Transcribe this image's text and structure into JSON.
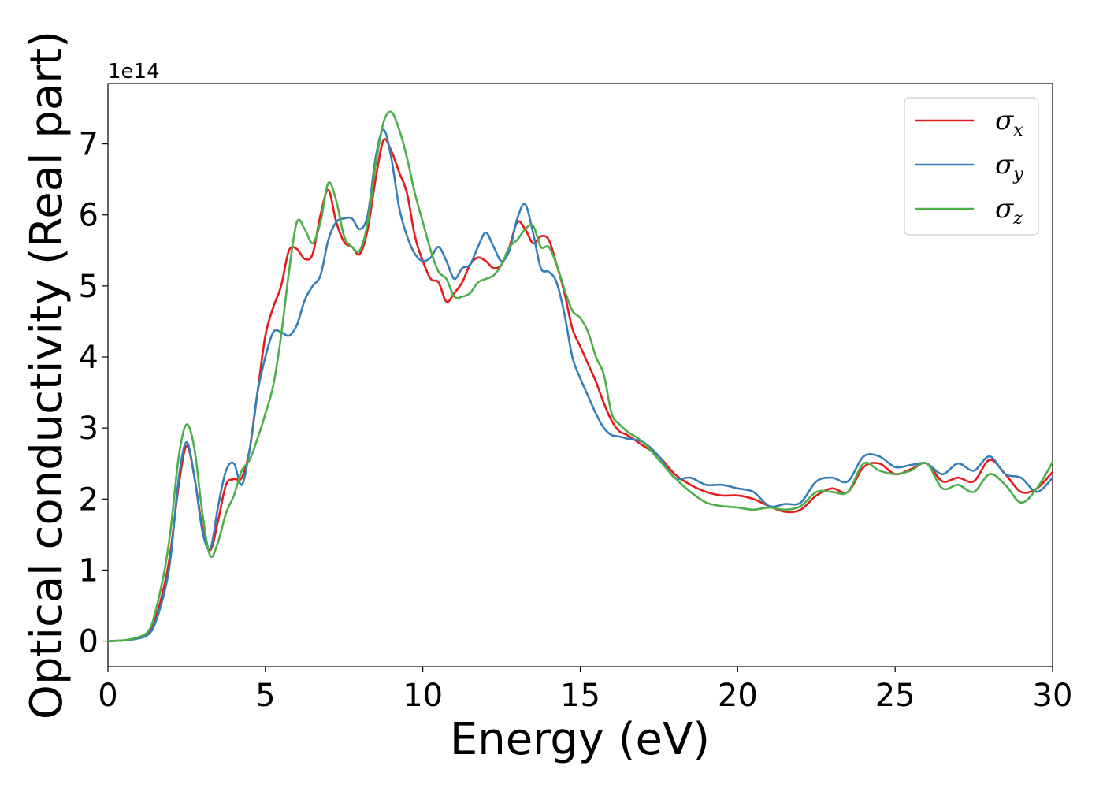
{
  "chart_data": {
    "type": "line",
    "xlabel": "Energy (eV)",
    "ylabel": "Optical conductivity (Real part)",
    "y_offset_label": "1e14",
    "xlim": [
      0,
      30
    ],
    "ylim": [
      -0.36,
      7.85
    ],
    "x_ticks": [
      0,
      5,
      10,
      15,
      20,
      25,
      30
    ],
    "y_ticks": [
      0,
      1,
      2,
      3,
      4,
      5,
      6,
      7
    ],
    "grid": false,
    "legend_position": "top-right",
    "series": [
      {
        "name": "σx",
        "label_main": "σ",
        "label_sub": "x",
        "color": "#e41a1c",
        "x": [
          0,
          0.5,
          1.0,
          1.3,
          1.5,
          1.8,
          2.0,
          2.25,
          2.5,
          2.75,
          3.0,
          3.25,
          3.5,
          3.75,
          4.0,
          4.25,
          4.5,
          4.75,
          5.0,
          5.25,
          5.5,
          5.75,
          6.0,
          6.25,
          6.5,
          6.75,
          7.0,
          7.25,
          7.5,
          7.75,
          8.0,
          8.25,
          8.5,
          8.75,
          9.0,
          9.25,
          9.5,
          9.75,
          10.0,
          10.25,
          10.5,
          10.75,
          11.0,
          11.25,
          11.5,
          11.75,
          12.0,
          12.25,
          12.5,
          12.75,
          13.0,
          13.25,
          13.5,
          13.75,
          14.0,
          14.25,
          14.5,
          14.75,
          15.0,
          15.25,
          15.5,
          15.75,
          16.0,
          16.25,
          16.5,
          17.0,
          17.5,
          18.0,
          18.5,
          19.0,
          19.5,
          20.0,
          20.5,
          21.0,
          21.5,
          22.0,
          22.5,
          23.0,
          23.5,
          24.0,
          24.5,
          25.0,
          25.5,
          26.0,
          26.5,
          27.0,
          27.5,
          28.0,
          28.5,
          29.0,
          29.5,
          30.0
        ],
        "y": [
          0,
          0.01,
          0.05,
          0.12,
          0.3,
          0.8,
          1.3,
          2.2,
          2.75,
          2.3,
          1.6,
          1.28,
          1.7,
          2.2,
          2.28,
          2.3,
          2.7,
          3.5,
          4.3,
          4.7,
          5.0,
          5.5,
          5.52,
          5.38,
          5.45,
          6.0,
          6.35,
          5.9,
          5.62,
          5.55,
          5.45,
          5.8,
          6.5,
          7.05,
          6.9,
          6.6,
          6.3,
          5.7,
          5.35,
          5.1,
          5.05,
          4.78,
          4.9,
          5.05,
          5.3,
          5.4,
          5.35,
          5.25,
          5.3,
          5.55,
          5.9,
          5.8,
          5.6,
          5.7,
          5.65,
          5.3,
          4.9,
          4.4,
          4.15,
          3.9,
          3.65,
          3.35,
          3.1,
          2.95,
          2.9,
          2.75,
          2.6,
          2.35,
          2.2,
          2.1,
          2.05,
          2.05,
          2.0,
          1.9,
          1.82,
          1.85,
          2.05,
          2.15,
          2.1,
          2.45,
          2.5,
          2.35,
          2.42,
          2.5,
          2.25,
          2.3,
          2.25,
          2.55,
          2.35,
          2.1,
          2.15,
          2.38
        ]
      },
      {
        "name": "σy",
        "label_main": "σ",
        "label_sub": "y",
        "color": "#377eb8",
        "x": [
          0,
          0.5,
          1.0,
          1.3,
          1.5,
          1.8,
          2.0,
          2.25,
          2.5,
          2.75,
          3.0,
          3.25,
          3.5,
          3.75,
          4.0,
          4.25,
          4.5,
          4.75,
          5.0,
          5.25,
          5.5,
          5.75,
          6.0,
          6.25,
          6.5,
          6.75,
          7.0,
          7.25,
          7.5,
          7.75,
          8.0,
          8.25,
          8.5,
          8.75,
          9.0,
          9.25,
          9.5,
          9.75,
          10.0,
          10.25,
          10.5,
          10.75,
          11.0,
          11.25,
          11.5,
          11.75,
          12.0,
          12.25,
          12.5,
          12.75,
          13.0,
          13.25,
          13.5,
          13.75,
          14.0,
          14.25,
          14.5,
          14.75,
          15.0,
          15.25,
          15.5,
          15.75,
          16.0,
          16.25,
          16.5,
          17.0,
          17.5,
          18.0,
          18.5,
          19.0,
          19.5,
          20.0,
          20.5,
          21.0,
          21.5,
          22.0,
          22.5,
          23.0,
          23.5,
          24.0,
          24.5,
          25.0,
          25.5,
          26.0,
          26.5,
          27.0,
          27.5,
          28.0,
          28.5,
          29.0,
          29.5,
          30.0
        ],
        "y": [
          0,
          0.01,
          0.04,
          0.1,
          0.25,
          0.7,
          1.2,
          2.3,
          2.8,
          2.3,
          1.55,
          1.3,
          1.9,
          2.4,
          2.5,
          2.2,
          2.7,
          3.5,
          4.0,
          4.35,
          4.35,
          4.3,
          4.45,
          4.8,
          5.0,
          5.15,
          5.65,
          5.9,
          5.95,
          5.95,
          5.8,
          6.0,
          6.8,
          7.2,
          6.8,
          6.1,
          5.7,
          5.45,
          5.35,
          5.4,
          5.55,
          5.35,
          5.1,
          5.25,
          5.3,
          5.55,
          5.75,
          5.55,
          5.35,
          5.5,
          5.95,
          6.15,
          5.75,
          5.25,
          5.2,
          5.05,
          4.6,
          4.0,
          3.7,
          3.45,
          3.2,
          3.0,
          2.9,
          2.88,
          2.85,
          2.8,
          2.6,
          2.3,
          2.3,
          2.2,
          2.2,
          2.15,
          2.1,
          1.9,
          1.93,
          1.95,
          2.25,
          2.3,
          2.25,
          2.6,
          2.6,
          2.45,
          2.48,
          2.5,
          2.35,
          2.5,
          2.4,
          2.6,
          2.35,
          2.3,
          2.1,
          2.3
        ]
      },
      {
        "name": "σz",
        "label_main": "σ",
        "label_sub": "z",
        "color": "#4daf4a",
        "x": [
          0,
          0.5,
          1.0,
          1.3,
          1.5,
          1.8,
          2.0,
          2.25,
          2.5,
          2.75,
          3.0,
          3.25,
          3.5,
          3.75,
          4.0,
          4.25,
          4.5,
          4.75,
          5.0,
          5.25,
          5.5,
          5.75,
          6.0,
          6.25,
          6.5,
          6.75,
          7.0,
          7.25,
          7.5,
          7.75,
          8.0,
          8.25,
          8.5,
          8.75,
          9.0,
          9.25,
          9.5,
          9.75,
          10.0,
          10.25,
          10.5,
          10.75,
          11.0,
          11.25,
          11.5,
          11.75,
          12.0,
          12.25,
          12.5,
          12.75,
          13.0,
          13.25,
          13.5,
          13.75,
          14.0,
          14.25,
          14.5,
          14.75,
          15.0,
          15.25,
          15.5,
          15.75,
          16.0,
          16.25,
          16.5,
          17.0,
          17.5,
          18.0,
          18.5,
          19.0,
          19.5,
          20.0,
          20.5,
          21.0,
          21.5,
          22.0,
          22.5,
          23.0,
          23.5,
          24.0,
          24.5,
          25.0,
          25.5,
          26.0,
          26.5,
          27.0,
          27.5,
          28.0,
          28.5,
          29.0,
          29.5,
          30.0
        ],
        "y": [
          0,
          0.01,
          0.06,
          0.15,
          0.4,
          1.0,
          1.6,
          2.6,
          3.05,
          2.7,
          1.8,
          1.2,
          1.4,
          1.8,
          2.05,
          2.4,
          2.55,
          2.85,
          3.2,
          3.6,
          4.3,
          5.2,
          5.9,
          5.8,
          5.6,
          5.9,
          6.45,
          6.2,
          5.7,
          5.55,
          5.5,
          5.9,
          6.7,
          7.3,
          7.45,
          7.2,
          6.8,
          6.3,
          5.9,
          5.5,
          5.2,
          5.1,
          4.85,
          4.85,
          4.9,
          5.05,
          5.1,
          5.15,
          5.3,
          5.55,
          5.65,
          5.8,
          5.85,
          5.55,
          5.55,
          5.3,
          4.95,
          4.65,
          4.55,
          4.35,
          4.0,
          3.75,
          3.2,
          3.05,
          2.95,
          2.8,
          2.55,
          2.3,
          2.1,
          1.95,
          1.9,
          1.88,
          1.85,
          1.88,
          1.85,
          1.9,
          2.1,
          2.1,
          2.1,
          2.5,
          2.4,
          2.35,
          2.4,
          2.5,
          2.15,
          2.2,
          2.1,
          2.35,
          2.2,
          1.95,
          2.15,
          2.52
        ]
      }
    ]
  }
}
